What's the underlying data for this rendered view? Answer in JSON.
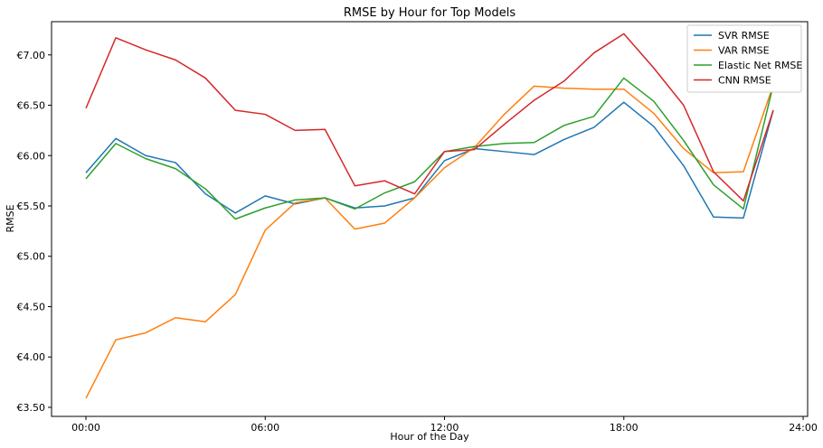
{
  "chart_data": {
    "type": "line",
    "title": "RMSE by Hour for Top Models",
    "xlabel": "Hour of the Day",
    "ylabel": "RMSE",
    "x": [
      0,
      1,
      2,
      3,
      4,
      5,
      6,
      7,
      8,
      9,
      10,
      11,
      12,
      13,
      14,
      15,
      16,
      17,
      18,
      19,
      20,
      21,
      22,
      23
    ],
    "x_ticks": [
      0,
      6,
      12,
      18,
      24
    ],
    "x_tick_labels": [
      "00:00",
      "06:00",
      "12:00",
      "18:00",
      "24:00"
    ],
    "xlim": [
      -1.15,
      24.15
    ],
    "y_ticks": [
      3.5,
      4.0,
      4.5,
      5.0,
      5.5,
      6.0,
      6.5,
      7.0
    ],
    "y_tick_labels": [
      "€3.50",
      "€4.00",
      "€4.50",
      "€5.00",
      "€5.50",
      "€6.00",
      "€6.50",
      "€7.00"
    ],
    "ylim": [
      3.41,
      7.33
    ],
    "grid": false,
    "legend_position": "top-right",
    "series": [
      {
        "name": "SVR RMSE",
        "color": "#1f77b4",
        "values": [
          5.83,
          6.17,
          6.0,
          5.93,
          5.62,
          5.43,
          5.6,
          5.52,
          5.58,
          5.48,
          5.5,
          5.58,
          5.95,
          6.07,
          6.04,
          6.01,
          6.16,
          6.28,
          6.53,
          6.29,
          5.9,
          5.39,
          5.38,
          6.45
        ]
      },
      {
        "name": "VAR RMSE",
        "color": "#ff7f0e",
        "values": [
          3.59,
          4.17,
          4.24,
          4.39,
          4.35,
          4.62,
          5.26,
          5.53,
          5.58,
          5.27,
          5.33,
          5.58,
          5.88,
          6.08,
          6.41,
          6.69,
          6.67,
          6.66,
          6.66,
          6.42,
          6.07,
          5.83,
          5.84,
          6.7
        ]
      },
      {
        "name": "Elastic Net RMSE",
        "color": "#2ca02c",
        "values": [
          5.77,
          6.12,
          5.97,
          5.87,
          5.67,
          5.37,
          5.48,
          5.56,
          5.58,
          5.47,
          5.63,
          5.74,
          6.04,
          6.09,
          6.12,
          6.13,
          6.3,
          6.39,
          6.77,
          6.54,
          6.15,
          5.71,
          5.47,
          6.7
        ]
      },
      {
        "name": "CNN RMSE",
        "color": "#d62728",
        "values": [
          6.47,
          7.17,
          7.05,
          6.95,
          6.77,
          6.45,
          6.41,
          6.25,
          6.26,
          5.7,
          5.75,
          5.62,
          6.04,
          6.06,
          6.31,
          6.55,
          6.74,
          7.02,
          7.21,
          6.87,
          6.5,
          5.84,
          5.55,
          6.45
        ]
      }
    ]
  }
}
